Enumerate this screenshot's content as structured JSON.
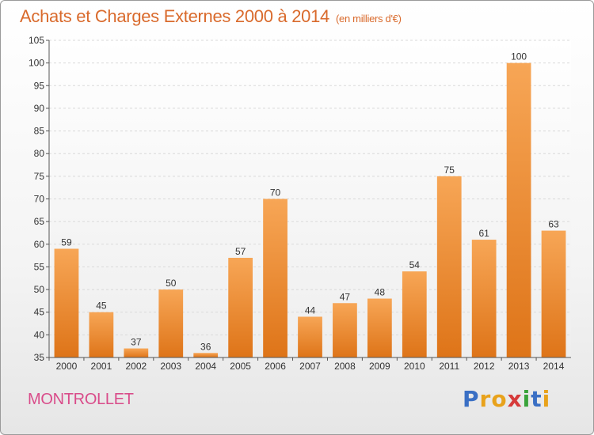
{
  "chart_data": {
    "type": "bar",
    "title": "Achats et Charges Externes 2000 à 2014",
    "unit": "(en milliers d'€)",
    "categories": [
      "2000",
      "2001",
      "2002",
      "2003",
      "2004",
      "2005",
      "2006",
      "2007",
      "2008",
      "2009",
      "2010",
      "2011",
      "2012",
      "2013",
      "2014"
    ],
    "values": [
      59,
      45,
      37,
      50,
      36,
      57,
      70,
      44,
      47,
      48,
      54,
      75,
      61,
      100,
      63
    ],
    "ylim": [
      35,
      105
    ],
    "yticks": [
      35,
      40,
      45,
      50,
      55,
      60,
      65,
      70,
      75,
      80,
      85,
      90,
      95,
      100,
      105
    ],
    "grid": true,
    "bar_color": "#f0963c"
  },
  "footer": {
    "commune": "MONTROLLET",
    "logo_letters": [
      "P",
      "r",
      "o",
      "x",
      "i",
      "t",
      "i"
    ],
    "logo_colors": [
      "#3a6fc4",
      "#e8a21b",
      "#e8a21b",
      "#d63a3a",
      "#3aa33a",
      "#3a6fc4",
      "#e8a21b"
    ]
  }
}
